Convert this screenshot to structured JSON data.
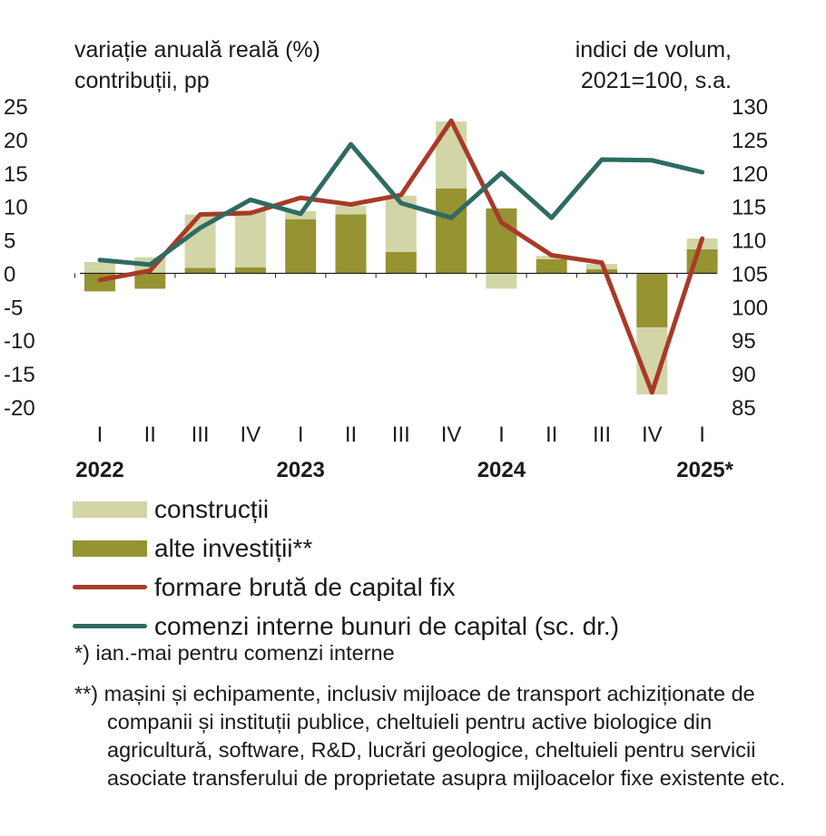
{
  "chart_data": {
    "type": "bar+line",
    "left_axis_title_line1": "variație anuală reală (%)",
    "left_axis_title_line2": "contribuții, pp",
    "right_axis_title_line1": "indici de volum,",
    "right_axis_title_line2": "2021=100, s.a.",
    "left_ticks": [
      "25",
      "20",
      "15",
      "10",
      "5",
      "0",
      "-5",
      "-10",
      "-15",
      "-20"
    ],
    "right_ticks": [
      "130",
      "125",
      "120",
      "115",
      "110",
      "105",
      "100",
      "95",
      "90",
      "85"
    ],
    "ylim_left": [
      -20,
      25
    ],
    "ylim_right": [
      85,
      130
    ],
    "categories": [
      "I",
      "II",
      "III",
      "IV",
      "I",
      "II",
      "III",
      "IV",
      "I",
      "II",
      "III",
      "IV",
      "I"
    ],
    "years": [
      {
        "label": "2022",
        "category_index": 0
      },
      {
        "label": "2023",
        "category_index": 4
      },
      {
        "label": "2024",
        "category_index": 8
      },
      {
        "label": "2025*",
        "category_index": 12
      }
    ],
    "legend_position": "bottom",
    "grid": false,
    "series": [
      {
        "name": "construcții",
        "kind": "bar",
        "color": "#d2d5a6",
        "values": [
          1.7,
          2.4,
          8.0,
          8.5,
          1.2,
          1.3,
          8.4,
          10.0,
          -2.3,
          0.5,
          0.8,
          -10.0,
          1.6
        ]
      },
      {
        "name": "alte investiții**",
        "kind": "bar",
        "color": "#959332",
        "values": [
          -2.7,
          -2.3,
          0.8,
          0.9,
          8.1,
          8.8,
          3.2,
          12.7,
          9.7,
          2.1,
          0.6,
          -8.1,
          3.6
        ]
      },
      {
        "name": "formare brută de capital fix",
        "kind": "line",
        "axis": "left",
        "color": "#a83a28",
        "values": [
          -1.0,
          0.4,
          8.8,
          9.0,
          11.3,
          10.3,
          11.7,
          22.8,
          7.6,
          2.7,
          1.6,
          -17.8,
          5.2
        ]
      },
      {
        "name": "comenzi interne bunuri de capital (sc. dr.)",
        "kind": "line",
        "axis": "right",
        "color": "#2e6b62",
        "values": [
          107.0,
          106.3,
          111.8,
          116.0,
          113.9,
          124.3,
          115.5,
          113.3,
          120.0,
          113.3,
          122.0,
          121.9,
          120.1
        ]
      }
    ]
  },
  "notes": {
    "note1": "*) ian.-mai pentru comenzi interne",
    "note2": "**) mașini și echipamente, inclusiv mijloace de transport achiziționate de companii și instituții publice, cheltuieli pentru active biologice din agricultură, software, R&D, lucrări geologice, cheltuieli pentru servicii asociate transferului de proprietate asupra mijloacelor fixe existente etc."
  }
}
